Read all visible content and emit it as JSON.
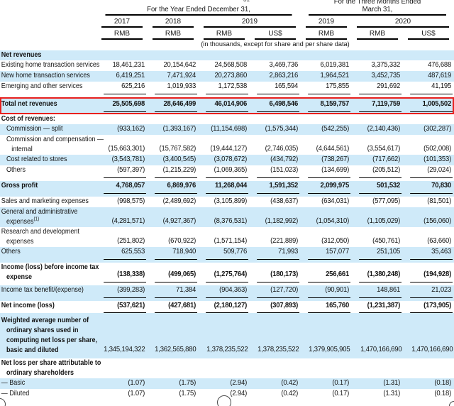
{
  "colors": {
    "row_shade": "#cfeaf9",
    "highlight_border": "#e8201e"
  },
  "annotations": {
    "top_partial_text": "31"
  },
  "table": {
    "period_groups": [
      {
        "title_lines": [
          "For the Year Ended December 31,"
        ],
        "span": [
          2,
          6
        ]
      },
      {
        "title_lines": [
          "For the Three Months Ended",
          "March 31,"
        ],
        "span": [
          6,
          9
        ]
      }
    ],
    "year_groups": [
      {
        "label": "2017",
        "span": [
          2,
          3
        ]
      },
      {
        "label": "2018",
        "span": [
          3,
          4
        ]
      },
      {
        "label": "2019",
        "span": [
          4,
          6
        ]
      },
      {
        "label": "2019",
        "span": [
          6,
          7
        ]
      },
      {
        "label": "2020",
        "span": [
          7,
          9
        ]
      }
    ],
    "currency_labels": [
      "RMB",
      "RMB",
      "RMB",
      "US$",
      "RMB",
      "RMB",
      "US$"
    ],
    "subtitle": "(in thousands, except for share and per share data)",
    "rows": [
      {
        "label": [
          "Net revenues"
        ],
        "indent": 0,
        "bold": true,
        "shade": "blue",
        "values": []
      },
      {
        "label": [
          "Existing home transaction services"
        ],
        "indent": 0,
        "shade": "white",
        "values": [
          "18,461,231",
          "20,154,642",
          "24,568,508",
          "3,469,736",
          "6,019,381",
          "3,375,332",
          "476,688"
        ]
      },
      {
        "label": [
          "New home transaction services"
        ],
        "indent": 0,
        "shade": "blue",
        "values": [
          "6,419,251",
          "7,471,924",
          "20,273,860",
          "2,863,216",
          "1,964,521",
          "3,452,735",
          "487,619"
        ]
      },
      {
        "label": [
          "Emerging and other services"
        ],
        "indent": 0,
        "shade": "white",
        "ul": "single",
        "values": [
          "625,216",
          "1,019,933",
          "1,172,538",
          "165,594",
          "175,855",
          "291,692",
          "41,195"
        ]
      },
      {
        "label": [
          "Total net revenues"
        ],
        "indent": 0,
        "bold": true,
        "values_bold": true,
        "shade": "blue",
        "ul": "single",
        "highlight": true,
        "values": [
          "25,505,698",
          "28,646,499",
          "46,014,906",
          "6,498,546",
          "8,159,757",
          "7,119,759",
          "1,005,502"
        ]
      },
      {
        "label": [
          "Cost of revenues:"
        ],
        "indent": 0,
        "bold": true,
        "shade": "white",
        "values": []
      },
      {
        "label": [
          "Commission — split"
        ],
        "indent": 1,
        "shade": "blue",
        "values": [
          "(933,162)",
          "(1,393,167)",
          "(11,154,698)",
          "(1,575,344)",
          "(542,255)",
          "(2,140,436)",
          "(302,287)"
        ]
      },
      {
        "label": [
          "Commission and compensation —",
          "internal"
        ],
        "indent": 1,
        "shade": "white",
        "values": [
          "(15,663,301)",
          "(15,767,582)",
          "(19,444,127)",
          "(2,746,035)",
          "(4,644,561)",
          "(3,554,617)",
          "(502,008)"
        ]
      },
      {
        "label": [
          "Cost related to stores"
        ],
        "indent": 1,
        "shade": "blue",
        "values": [
          "(3,543,781)",
          "(3,400,545)",
          "(3,078,672)",
          "(434,792)",
          "(738,267)",
          "(717,662)",
          "(101,353)"
        ]
      },
      {
        "label": [
          "Others"
        ],
        "indent": 1,
        "shade": "white",
        "ul": "single",
        "values": [
          "(597,397)",
          "(1,215,229)",
          "(1,069,365)",
          "(151,023)",
          "(134,699)",
          "(205,512)",
          "(29,024)"
        ]
      },
      {
        "label": [
          "Gross profit"
        ],
        "indent": 0,
        "bold": true,
        "values_bold": true,
        "shade": "blue",
        "ul": "single",
        "values": [
          "4,768,057",
          "6,869,976",
          "11,268,044",
          "1,591,352",
          "2,099,975",
          "501,532",
          "70,830"
        ]
      },
      {
        "label": [
          "Sales and marketing expenses"
        ],
        "indent": 0,
        "shade": "white",
        "values": [
          "(998,575)",
          "(2,489,692)",
          "(3,105,899)",
          "(438,637)",
          "(634,031)",
          "(577,095)",
          "(81,501)"
        ]
      },
      {
        "label": [
          "General and administrative",
          "expenses"
        ],
        "sup": "(1)",
        "indent": 0,
        "shade": "blue",
        "values": [
          "(4,281,571)",
          "(4,927,367)",
          "(8,376,531)",
          "(1,182,992)",
          "(1,054,310)",
          "(1,105,029)",
          "(156,060)"
        ]
      },
      {
        "label": [
          "Research and development",
          "expenses"
        ],
        "indent": 0,
        "shade": "white",
        "values": [
          "(251,802)",
          "(670,922)",
          "(1,571,154)",
          "(221,889)",
          "(312,050)",
          "(450,761)",
          "(63,660)"
        ]
      },
      {
        "label": [
          "Others"
        ],
        "indent": 0,
        "shade": "blue",
        "ul": "single",
        "values": [
          "625,553",
          "718,940",
          "509,776",
          "71,993",
          "157,077",
          "251,105",
          "35,463"
        ]
      },
      {
        "label": [
          "Income (loss) before income tax",
          "expense"
        ],
        "indent": 0,
        "bold": true,
        "values_bold": true,
        "shade": "white",
        "ul": "single",
        "values": [
          "(138,338)",
          "(499,065)",
          "(1,275,764)",
          "(180,173)",
          "256,661",
          "(1,380,248)",
          "(194,928)"
        ]
      },
      {
        "label": [
          "Income tax benefit/(expense)"
        ],
        "indent": 0,
        "shade": "blue",
        "ul": "single",
        "values": [
          "(399,283)",
          "71,384",
          "(904,363)",
          "(127,720)",
          "(90,901)",
          "148,861",
          "21,023"
        ]
      },
      {
        "label": [
          "Net income (loss)"
        ],
        "indent": 0,
        "bold": true,
        "values_bold": true,
        "shade": "white",
        "ul": "double",
        "values": [
          "(537,621)",
          "(427,681)",
          "(2,180,127)",
          "(307,893)",
          "165,760",
          "(1,231,387)",
          "(173,905)"
        ]
      },
      {
        "label": [
          "Weighted average number of",
          "ordinary shares used in",
          "computing net loss per share,",
          "basic and diluted"
        ],
        "indent": 0,
        "bold": true,
        "shade": "blue",
        "pad": true,
        "values": [
          "1,345,194,322",
          "1,362,565,880",
          "1,378,235,522",
          "1,378,235,522",
          "1,379,905,905",
          "1,470,166,690",
          "1,470,166,690"
        ]
      },
      {
        "label": [
          "Net loss per share attributable to",
          "ordinary shareholders"
        ],
        "indent": 0,
        "bold": true,
        "shade": "white",
        "values": []
      },
      {
        "label": [
          "— Basic"
        ],
        "indent": 0,
        "shade": "blue",
        "values": [
          "(1.07)",
          "(1.75)",
          "(2.94)",
          "(0.42)",
          "(0.17)",
          "(1.31)",
          "(0.18)"
        ]
      },
      {
        "label": [
          "— Diluted"
        ],
        "indent": 0,
        "shade": "white",
        "values": [
          "(1.07)",
          "(1.75)",
          "(2.94)",
          "(0.42)",
          "(0.17)",
          "(1.31)",
          "(0.18)"
        ]
      }
    ]
  }
}
